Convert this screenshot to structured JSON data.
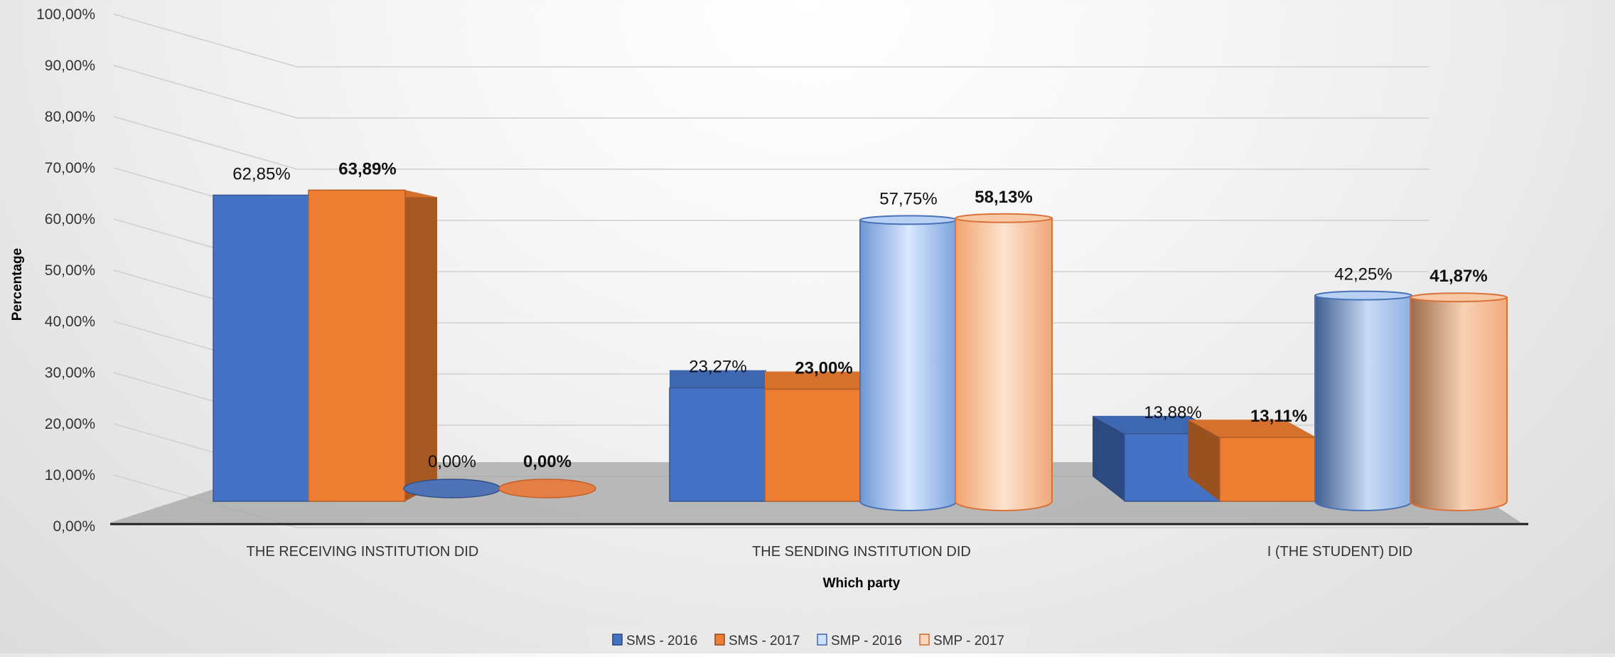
{
  "chart_data": {
    "type": "bar",
    "xlabel": "Which party",
    "ylabel": "Percentage",
    "ylim": [
      0,
      100
    ],
    "y_ticks": [
      "0,00%",
      "10,00%",
      "20,00%",
      "30,00%",
      "40,00%",
      "50,00%",
      "60,00%",
      "70,00%",
      "80,00%",
      "90,00%",
      "100,00%"
    ],
    "categories": [
      "THE RECEIVING INSTITUTION DID",
      "THE SENDING INSTITUTION DID",
      "I (THE STUDENT) DID"
    ],
    "series": [
      {
        "name": "SMS - 2016",
        "values": [
          62.85,
          23.27,
          13.88
        ],
        "labels": [
          "62,85%",
          "23,27%",
          "13,88%"
        ],
        "shape": "box",
        "color": "#4472c4",
        "bold": false
      },
      {
        "name": "SMS - 2017",
        "values": [
          63.89,
          23.0,
          13.11
        ],
        "labels": [
          "63,89%",
          "23,00%",
          "13,11%"
        ],
        "shape": "box",
        "color": "#ed7d31",
        "bold": true
      },
      {
        "name": "SMP - 2016",
        "values": [
          0.0,
          57.75,
          42.25
        ],
        "labels": [
          "0,00%",
          "57,75%",
          "42,25%"
        ],
        "shape": "cylinder",
        "color": "#8fb3e8",
        "bold": false
      },
      {
        "name": "SMP - 2017",
        "values": [
          0.0,
          58.13,
          41.87
        ],
        "labels": [
          "0,00%",
          "58,13%",
          "41,87%"
        ],
        "shape": "cylinder",
        "color": "#f4b183",
        "bold": true
      }
    ],
    "grid": true,
    "legend": "bottom"
  }
}
